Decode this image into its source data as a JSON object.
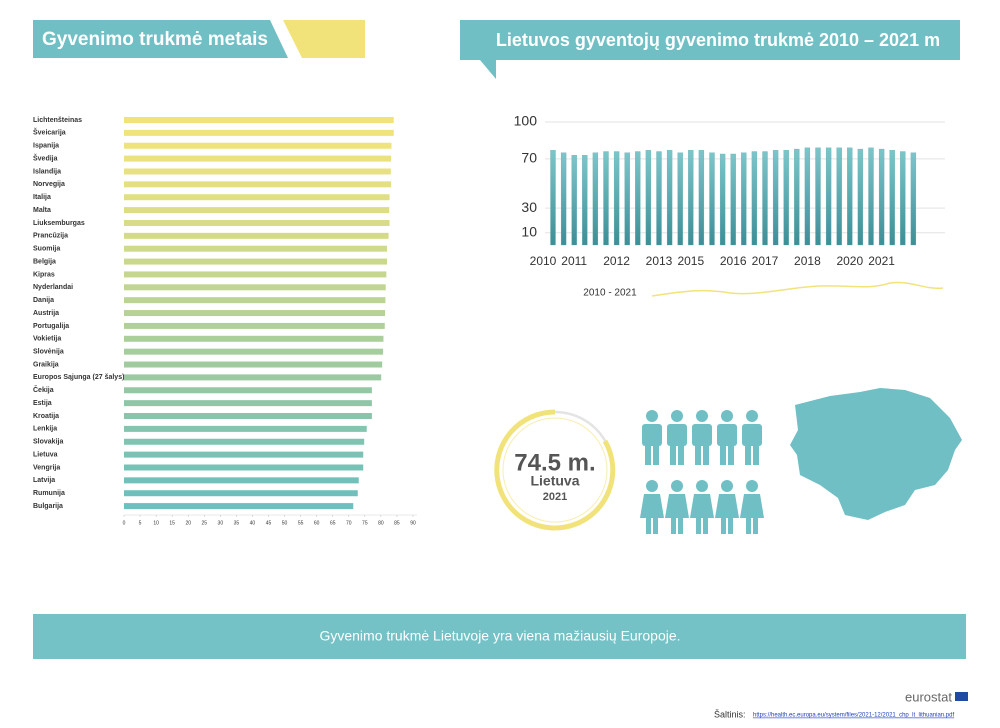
{
  "chart_data": [
    {
      "type": "bar",
      "orientation": "horizontal",
      "title": "Gyvenimo trukmė metais",
      "categories": [
        "Lichtenšteinas",
        "Šveicarija",
        "Ispanija",
        "Švedija",
        "Islandija",
        "Norvegija",
        "Italija",
        "Malta",
        "Liuksemburgas",
        "Prancūzija",
        "Suomija",
        "Belgija",
        "Kipras",
        "Nyderlandai",
        "Danija",
        "Austrija",
        "Portugalija",
        "Vokietija",
        "Slovėnija",
        "Graikija",
        "Europos Sąjunga (27 šalys)",
        "Čekija",
        "Estija",
        "Kroatija",
        "Lenkija",
        "Slovakija",
        "Lietuva",
        "Vengrija",
        "Latvija",
        "Rumunija",
        "Bulgarija"
      ],
      "values": [
        84,
        84,
        83.3,
        83.2,
        83.1,
        83.2,
        82.7,
        82.6,
        82.7,
        82.4,
        81.9,
        81.9,
        81.7,
        81.5,
        81.4,
        81.3,
        81.2,
        80.8,
        80.7,
        80.4,
        80.1,
        77.2,
        77.2,
        77.2,
        75.6,
        74.8,
        74.5,
        74.5,
        73.1,
        72.8,
        71.4
      ],
      "colors": [
        "#f1e37a",
        "#f0e37b",
        "#eee37c",
        "#ebe27e",
        "#e8e17f",
        "#e4e081",
        "#e0df83",
        "#dcdd85",
        "#d8dc87",
        "#d3db89",
        "#cfda8b",
        "#cad88d",
        "#c5d78f",
        "#c0d591",
        "#bbd494",
        "#b6d296",
        "#b0d098",
        "#abcf9b",
        "#a5cd9d",
        "#a0cb9f",
        "#9ac9a2",
        "#94c8a5",
        "#8fc6a8",
        "#8ac5ab",
        "#85c4ae",
        "#80c3b1",
        "#7bc2b4",
        "#77c1b7",
        "#73c0ba",
        "#70bfbd",
        "#6dbfc0"
      ],
      "xlim": [
        0,
        90
      ],
      "xticks": [
        0,
        5,
        10,
        15,
        20,
        25,
        30,
        35,
        40,
        45,
        50,
        55,
        60,
        65,
        70,
        75,
        80,
        85,
        90
      ]
    },
    {
      "type": "bar",
      "orientation": "vertical",
      "title": "Lietuvos gyventojų gyvenimo trukmė 2010 – 2021 m",
      "categories": [
        "2010",
        null,
        "2011",
        null,
        null,
        null,
        "2012",
        null,
        null,
        null,
        "2013",
        null,
        null,
        "2015",
        null,
        null,
        null,
        "2016",
        null,
        null,
        "2017",
        null,
        null,
        null,
        "2018",
        null,
        null,
        null,
        "2020",
        null,
        null,
        "2021",
        null,
        null,
        null
      ],
      "values": [
        77,
        75,
        73,
        73,
        75,
        76,
        76,
        75,
        76,
        77,
        76,
        77,
        75,
        77,
        77,
        75,
        74,
        74,
        75,
        76,
        76,
        77,
        77,
        78,
        79,
        79,
        79,
        79,
        79,
        78,
        79,
        78,
        77,
        76,
        75
      ],
      "color": "#5aa9b0",
      "ylim": [
        0,
        100
      ],
      "yticks": [
        10,
        30,
        70,
        100
      ],
      "grid": true,
      "legend_label": "2010 - 2021"
    }
  ],
  "highlight": {
    "value": "74.5 m.",
    "label": "Lietuva",
    "year": "2021"
  },
  "banner": "Gyvenimo trukmė Lietuvoje yra viena mažiausių Europoje.",
  "footer": {
    "brand": "eurostat",
    "source_label": "Šaltinis:",
    "source_url": "https://health.ec.europa.eu/system/files/2021-12/2021_chp_lt_lithuanian.pdf"
  }
}
